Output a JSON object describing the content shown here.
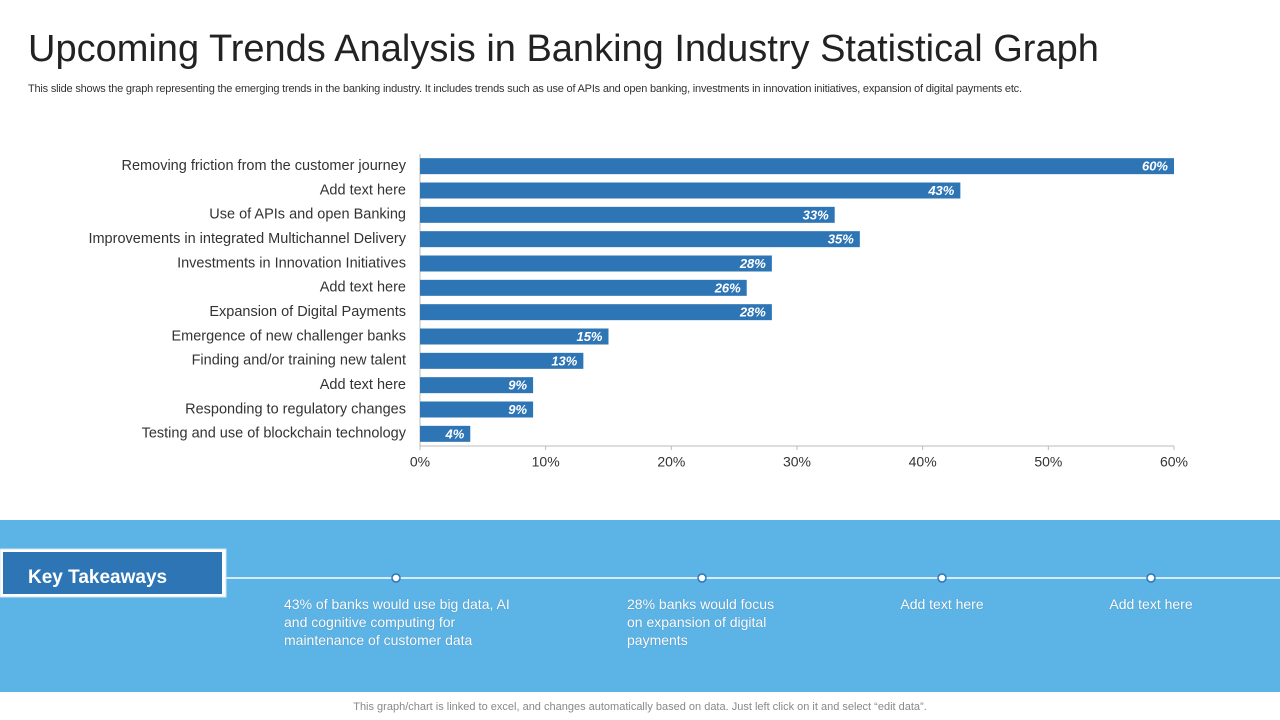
{
  "title": "Upcoming Trends Analysis in Banking Industry Statistical Graph",
  "subtitle": "This slide shows the graph representing the emerging trends in the banking industry. It includes trends such as use of APIs and open banking, investments in innovation initiatives, expansion of digital payments etc.",
  "chart_data": {
    "type": "bar",
    "orientation": "horizontal",
    "categories": [
      "Removing friction from the customer journey",
      "Add text here",
      "Use of APIs and open Banking",
      "Improvements in integrated Multichannel Delivery",
      "Investments in Innovation Initiatives",
      "Add text here",
      "Expansion of Digital Payments",
      "Emergence of new challenger banks",
      "Finding and/or training new talent",
      "Add text here",
      "Responding to regulatory changes",
      "Testing and use of blockchain technology"
    ],
    "values": [
      60,
      43,
      33,
      35,
      28,
      26,
      28,
      15,
      13,
      9,
      9,
      4
    ],
    "value_labels": [
      "60%",
      "43%",
      "33%",
      "35%",
      "28%",
      "26%",
      "28%",
      "15%",
      "13%",
      "9%",
      "9%",
      "4%"
    ],
    "color": "#2e75b6",
    "xlim": [
      0,
      60
    ],
    "xticks": [
      {
        "value": 0,
        "label": "0%"
      },
      {
        "value": 10,
        "label": "10%"
      },
      {
        "value": 20,
        "label": "20%"
      },
      {
        "value": 30,
        "label": "30%"
      },
      {
        "value": 40,
        "label": "40%"
      },
      {
        "value": 50,
        "label": "50%"
      },
      {
        "value": 60,
        "label": "60%"
      }
    ]
  },
  "takeaways": {
    "heading": "Key Takeaways",
    "items": [
      "43% of banks would use big data, AI and cognitive computing for maintenance of customer data",
      "28% banks would focus on expansion of digital payments",
      "Add text here",
      "Add text here"
    ]
  },
  "footer": "This graph/chart is linked to excel, and changes automatically based on data. Just left click on it and select “edit data”."
}
